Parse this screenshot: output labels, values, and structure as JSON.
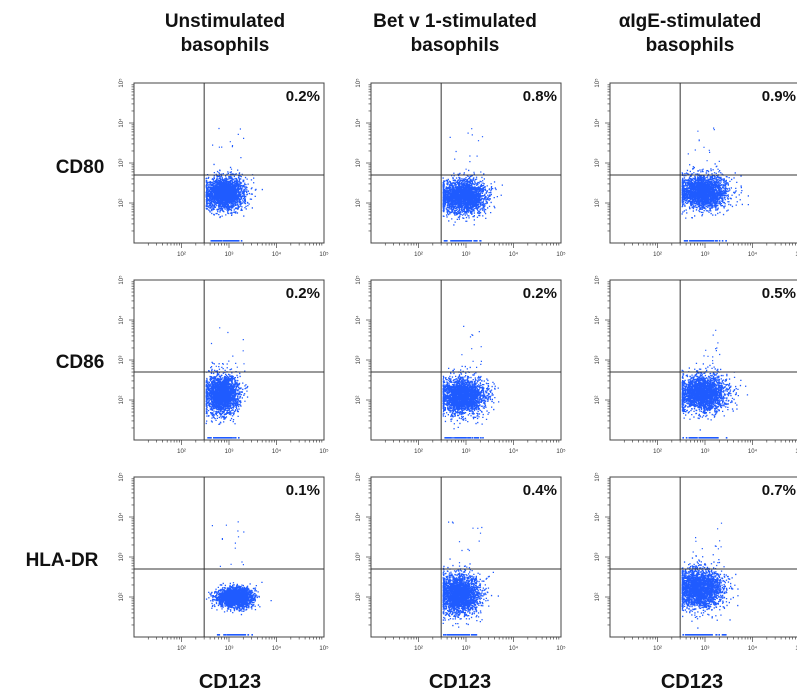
{
  "chart_data": {
    "type": "scatter",
    "columns": [
      "Unstimulated\nbasophils",
      "Bet v 1-stimulated\nbasophils",
      "αIgE-stimulated\nbasophils"
    ],
    "rows": [
      "CD80",
      "CD86",
      "HLA-DR"
    ],
    "xlabel": "CD123",
    "axis_scale": "log",
    "xlim": [
      10,
      100000
    ],
    "ylim": [
      10,
      100000
    ],
    "tick_labels": [
      "10²",
      "10³",
      "10⁴",
      "10⁵"
    ],
    "gate": {
      "x": 300,
      "y": 500
    },
    "panels": [
      {
        "row": "CD80",
        "column": 0,
        "percent": "0.2%",
        "center": [
          800,
          180
        ],
        "spread": [
          0.2,
          0.2
        ],
        "n": 2600
      },
      {
        "row": "CD80",
        "column": 1,
        "percent": "0.8%",
        "center": [
          800,
          150
        ],
        "spread": [
          0.25,
          0.2
        ],
        "n": 2600
      },
      {
        "row": "CD80",
        "column": 2,
        "percent": "0.9%",
        "center": [
          900,
          200
        ],
        "spread": [
          0.25,
          0.2
        ],
        "n": 2600
      },
      {
        "row": "CD86",
        "column": 0,
        "percent": "0.2%",
        "center": [
          700,
          140
        ],
        "spread": [
          0.17,
          0.24
        ],
        "n": 2600
      },
      {
        "row": "CD86",
        "column": 1,
        "percent": "0.2%",
        "center": [
          800,
          130
        ],
        "spread": [
          0.25,
          0.22
        ],
        "n": 2600
      },
      {
        "row": "CD86",
        "column": 2,
        "percent": "0.5%",
        "center": [
          850,
          150
        ],
        "spread": [
          0.25,
          0.22
        ],
        "n": 2600
      },
      {
        "row": "HLA-DR",
        "column": 0,
        "percent": "0.1%",
        "center": [
          1300,
          100
        ],
        "spread": [
          0.18,
          0.12
        ],
        "n": 2600
      },
      {
        "row": "HLA-DR",
        "column": 1,
        "percent": "0.4%",
        "center": [
          700,
          120
        ],
        "spread": [
          0.22,
          0.24
        ],
        "n": 2600
      },
      {
        "row": "HLA-DR",
        "column": 2,
        "percent": "0.7%",
        "center": [
          750,
          170
        ],
        "spread": [
          0.25,
          0.24
        ],
        "n": 2600
      }
    ]
  },
  "colors": {
    "dots": "#1f5bff",
    "axis": "#444444",
    "gate": "#333333",
    "text": "#111111"
  }
}
